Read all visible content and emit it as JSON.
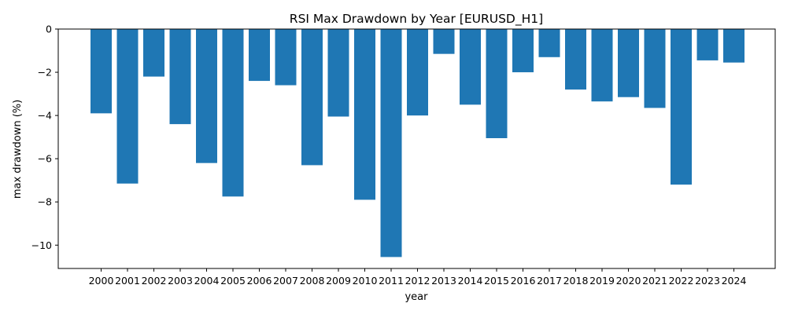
{
  "chart_data": {
    "type": "bar",
    "title": "RSI Max Drawdown by Year [EURUSD_H1]",
    "xlabel": "year",
    "ylabel": "max drawdown (%)",
    "ylim": [
      -11.08,
      0
    ],
    "yticks": [
      0,
      -2,
      -4,
      -6,
      -8,
      -10
    ],
    "grid": false,
    "bar_color": "#1f77b4",
    "categories": [
      "2000",
      "2001",
      "2002",
      "2003",
      "2004",
      "2005",
      "2006",
      "2007",
      "2008",
      "2009",
      "2010",
      "2011",
      "2012",
      "2013",
      "2014",
      "2015",
      "2016",
      "2017",
      "2018",
      "2019",
      "2020",
      "2021",
      "2022",
      "2023",
      "2024"
    ],
    "values": [
      -3.9,
      -7.15,
      -2.2,
      -4.4,
      -6.2,
      -7.75,
      -2.4,
      -2.6,
      -6.3,
      -4.05,
      -7.9,
      -10.55,
      -4.0,
      -1.15,
      -3.5,
      -5.05,
      -2.0,
      -1.3,
      -2.8,
      -3.35,
      -3.15,
      -3.65,
      -7.2,
      -1.45,
      -1.55
    ]
  }
}
